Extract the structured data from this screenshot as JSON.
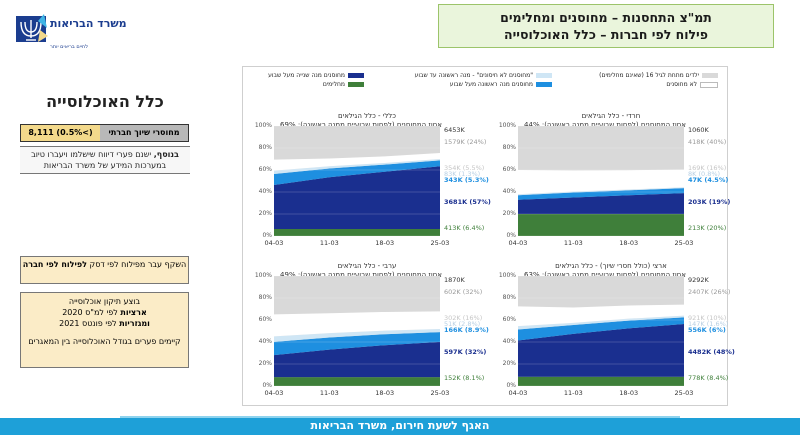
{
  "header": {
    "title_line1": "תמ\"צ התחסנות – מחוסנים ומחלימים",
    "title_line2": "פילוח לפי חברות – כלל האוכלוסייה",
    "logo_name": "משרד הבריאות",
    "logo_tagline": "לחיים בריאים יותר"
  },
  "left_panel": {
    "population_title": "כלל האוכלוסייה",
    "ses_label": "מחוסרי שיוך חברתי",
    "ses_value": "8,111 (0.5%<)",
    "note1_bold": "בנוסף,",
    "note1_text": " ישנם פערי דיווח שישלמו ויעברו טיוב במערכות המידע של משרד הבריאות",
    "note2_text": "השקף עבר מפילוח לפי דסק ",
    "note2_bold": "לפילוח לפי חברה",
    "note3_line1": "בוצע תיקון אוכלוסייה",
    "note3_bold1": "ארציות",
    "note3_line2": " לפי למ\"ס 2020",
    "note3_bold2": "ומגזריות",
    "note3_line3": " לפי פונטס 2021",
    "note3_line4": "קיימים פערים בגודל האוכלוסייה בין המאגרים"
  },
  "legend": {
    "items": [
      {
        "label": "ילדים מתחת לגיל 16 (שאינם מחלימים)",
        "color": "#d9d9d9"
      },
      {
        "label": "לא מחוסנים",
        "color": "#ffffff"
      },
      {
        "label": "\"מחוסנים לא חיסונים\" - מנה ראשונה עד שבוע",
        "color": "#cfe6f5"
      },
      {
        "label": "מחוסנים מנה ראשונה מעל שבוע",
        "color": "#1e8fe0"
      },
      {
        "label": "מחוסנים מנה שנייה מעל שבוע",
        "color": "#1a2f8f"
      },
      {
        "label": "מחלימים",
        "color": "#3f7f3a"
      }
    ]
  },
  "charts": [
    {
      "title": "חרדי - כלל הגילאים",
      "subtitle": "אחוז המחוסנים (לפחות שבועיים ממנה ראשונה): 44%",
      "total": "1060K",
      "x_ticks": [
        "04-03",
        "11-03",
        "18-03",
        "25-03"
      ],
      "y_ticks": [
        "100%",
        "80%",
        "60%",
        "40%",
        "20%",
        "0%"
      ],
      "right_labels": [
        {
          "text": "418K (40%)",
          "color": "#9a9a9a"
        },
        {
          "text": "169K (16%)",
          "color": "#c6c6c6"
        },
        {
          "text": "8K (0.8%)",
          "color": "#b7cfe3"
        },
        {
          "text": "47K (4.5%)",
          "color": "#1e8fe0"
        },
        {
          "text": "203K (19%)",
          "color": "#1a2f8f"
        },
        {
          "text": "213K (20%)",
          "color": "#3f7f3a"
        }
      ]
    },
    {
      "title": "כללי - כלל הגילאים",
      "subtitle": "אחוז המחוסנים (לפחות שבועיים ממנה ראשונה): 69%",
      "total": "6453K",
      "x_ticks": [
        "04-03",
        "11-03",
        "18-03",
        "25-03"
      ],
      "y_ticks": [
        "100%",
        "80%",
        "60%",
        "40%",
        "20%",
        "0%"
      ],
      "right_labels": [
        {
          "text": "1579K (24%)",
          "color": "#9a9a9a"
        },
        {
          "text": "354K (5.5%)",
          "color": "#c6c6c6"
        },
        {
          "text": "83K (1.3%)",
          "color": "#b7cfe3"
        },
        {
          "text": "343K (5.3%)",
          "color": "#1e8fe0"
        },
        {
          "text": "3681K (57%)",
          "color": "#1a2f8f"
        },
        {
          "text": "413K (6.4%)",
          "color": "#3f7f3a"
        }
      ]
    },
    {
      "title": "ארצי (כולל חסרי שיוך) - כלל הגילאים",
      "subtitle": "אחוז המחוסנים (לפחות שבועיים ממנה ראשונה): 63%",
      "total": "9292K",
      "x_ticks": [
        "04-03",
        "11-03",
        "18-03",
        "25-03"
      ],
      "y_ticks": [
        "100%",
        "80%",
        "60%",
        "40%",
        "20%",
        "0%"
      ],
      "right_labels": [
        {
          "text": "2407K (26%)",
          "color": "#9a9a9a"
        },
        {
          "text": "921K (10%)",
          "color": "#c6c6c6"
        },
        {
          "text": "147K (1.6%)",
          "color": "#b7cfe3"
        },
        {
          "text": "556K (6%)",
          "color": "#1e8fe0"
        },
        {
          "text": "4482K (48%)",
          "color": "#1a2f8f"
        },
        {
          "text": "778K (8.4%)",
          "color": "#3f7f3a"
        }
      ]
    },
    {
      "title": "ערבי - כלל הגילאים",
      "subtitle": "אחוז המחוסנים (לפחות שבועיים ממנה ראשונה): 49%",
      "total": "1870K",
      "x_ticks": [
        "04-03",
        "11-03",
        "18-03",
        "25-03"
      ],
      "y_ticks": [
        "100%",
        "80%",
        "60%",
        "40%",
        "20%",
        "0%"
      ],
      "right_labels": [
        {
          "text": "602K (32%)",
          "color": "#9a9a9a"
        },
        {
          "text": "302K (16%)",
          "color": "#c6c6c6"
        },
        {
          "text": "51K (2.8%)",
          "color": "#b7cfe3"
        },
        {
          "text": "166K (8.9%)",
          "color": "#1e8fe0"
        },
        {
          "text": "597K (32%)",
          "color": "#1a2f8f"
        },
        {
          "text": "152K (8.1%)",
          "color": "#3f7f3a"
        }
      ]
    }
  ],
  "chart_data": [
    {
      "type": "area",
      "title": "חרדי - כלל הגילאים",
      "x": [
        "04-03",
        "11-03",
        "18-03",
        "25-03"
      ],
      "ylim": [
        0,
        100
      ],
      "series": [
        {
          "name": "מחלימים",
          "values": [
            20,
            20,
            20,
            20
          ]
        },
        {
          "name": "מחוסנים מנה שנייה מעל שבוע",
          "values": [
            13,
            15,
            17,
            19
          ]
        },
        {
          "name": "מחוסנים מנה ראשונה מעל שבוע",
          "values": [
            4,
            4.5,
            4.5,
            4.5
          ]
        },
        {
          "name": "\"מחוסנים לא חיסונים\" - מנה ראשונה עד שבוע",
          "values": [
            1,
            1,
            0.8,
            0.8
          ]
        },
        {
          "name": "לא מחוסנים",
          "values": [
            22,
            19,
            17.5,
            16
          ]
        }
      ]
    },
    {
      "type": "area",
      "title": "כללי - כלל הגילאים",
      "x": [
        "04-03",
        "11-03",
        "18-03",
        "25-03"
      ],
      "ylim": [
        0,
        100
      ],
      "series": [
        {
          "name": "מחלימים",
          "values": [
            6.4,
            6.4,
            6.4,
            6.4
          ]
        },
        {
          "name": "מחוסנים מנה שנייה מעל שבוע",
          "values": [
            40,
            47,
            52,
            57
          ]
        },
        {
          "name": "מחוסנים מנה ראשונה מעל שבוע",
          "values": [
            10,
            8,
            6.5,
            5.3
          ]
        },
        {
          "name": "\"מחוסנים לא חיסונים\" - מנה ראשונה עד שבוע",
          "values": [
            3,
            2,
            1.5,
            1.3
          ]
        },
        {
          "name": "לא מחוסנים",
          "values": [
            10,
            7,
            6,
            5.5
          ]
        }
      ]
    },
    {
      "type": "area",
      "title": "ארצי (כולל חסרי שיוך) - כלל הגילאים",
      "x": [
        "04-03",
        "11-03",
        "18-03",
        "25-03"
      ],
      "ylim": [
        0,
        100
      ],
      "series": [
        {
          "name": "מחלימים",
          "values": [
            8.4,
            8.4,
            8.4,
            8.4
          ]
        },
        {
          "name": "מחוסנים מנה שנייה מעל שבוע",
          "values": [
            33,
            39,
            44,
            48
          ]
        },
        {
          "name": "מחוסנים מנה ראשונה מעל שבוע",
          "values": [
            10,
            8,
            7,
            6
          ]
        },
        {
          "name": "\"מחוסנים לא חיסונים\" - מנה ראשונה עד שבוע",
          "values": [
            3,
            2,
            1.8,
            1.6
          ]
        },
        {
          "name": "לא מחוסנים",
          "values": [
            18,
            14,
            12,
            10
          ]
        }
      ]
    },
    {
      "type": "area",
      "title": "ערבי - כלל הגילאים",
      "x": [
        "04-03",
        "11-03",
        "18-03",
        "25-03"
      ],
      "ylim": [
        0,
        100
      ],
      "series": [
        {
          "name": "מחלימים",
          "values": [
            8.1,
            8.1,
            8.1,
            8.1
          ]
        },
        {
          "name": "מחוסנים מנה שנייה מעל שבוע",
          "values": [
            20,
            25,
            29,
            32
          ]
        },
        {
          "name": "מחוסנים מנה ראשונה מעל שבוע",
          "values": [
            12,
            11,
            10,
            8.9
          ]
        },
        {
          "name": "\"מחוסנים לא חיסונים\" - מנה ראשונה עד שבוע",
          "values": [
            5,
            4,
            3.2,
            2.8
          ]
        },
        {
          "name": "לא מחוסנים",
          "values": [
            20,
            18,
            17,
            16
          ]
        }
      ]
    }
  ],
  "footer": {
    "text": "האגף לשעת חירום, משרד הבריאות"
  }
}
